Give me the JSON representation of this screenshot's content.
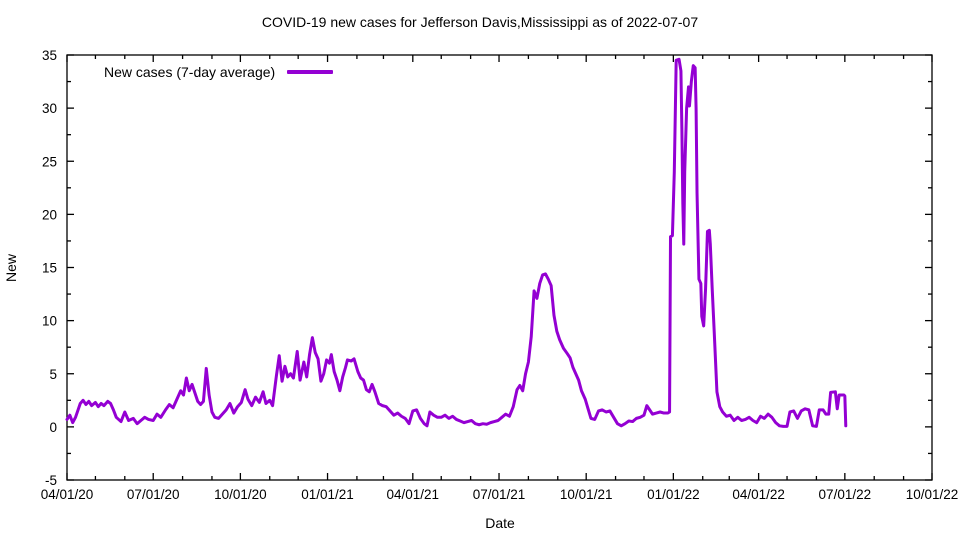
{
  "chart_data": {
    "type": "line",
    "title": "COVID-19 new cases for Jefferson Davis,Mississippi as of 2022-07-07",
    "xlabel": "Date",
    "ylabel": "New",
    "ylim": [
      -5,
      35
    ],
    "xlim_dates": [
      "04/01/20",
      "10/01/22"
    ],
    "grid": false,
    "x_tick_labels": [
      "04/01/20",
      "07/01/20",
      "10/01/20",
      "01/01/21",
      "04/01/21",
      "07/01/21",
      "10/01/21",
      "01/01/22",
      "04/01/22",
      "07/01/22",
      "10/01/22"
    ],
    "y_tick_labels": [
      "-5",
      "0",
      "5",
      "10",
      "15",
      "20",
      "25",
      "30",
      "35"
    ],
    "legend": {
      "position": "top-left-inside",
      "entries": [
        {
          "label": "New cases (7-day average)",
          "color": "#9400D3"
        }
      ]
    },
    "series": [
      {
        "name": "New cases (7-day average)",
        "color": "#9400D3",
        "points": [
          [
            "04/01/20",
            0.7
          ],
          [
            "04/04/20",
            1.1
          ],
          [
            "04/07/20",
            0.4
          ],
          [
            "04/10/20",
            0.9
          ],
          [
            "04/15/20",
            2.2
          ],
          [
            "04/18/20",
            2.5
          ],
          [
            "04/21/20",
            2.1
          ],
          [
            "04/24/20",
            2.4
          ],
          [
            "04/27/20",
            2.0
          ],
          [
            "05/01/20",
            2.3
          ],
          [
            "05/04/20",
            1.9
          ],
          [
            "05/07/20",
            2.2
          ],
          [
            "05/10/20",
            2.0
          ],
          [
            "05/14/20",
            2.4
          ],
          [
            "05/17/20",
            2.2
          ],
          [
            "05/20/20",
            1.6
          ],
          [
            "05/23/20",
            0.9
          ],
          [
            "05/28/20",
            0.5
          ],
          [
            "06/01/20",
            1.4
          ],
          [
            "06/05/20",
            0.6
          ],
          [
            "06/10/20",
            0.8
          ],
          [
            "06/14/20",
            0.3
          ],
          [
            "06/18/20",
            0.6
          ],
          [
            "06/22/20",
            0.9
          ],
          [
            "06/26/20",
            0.7
          ],
          [
            "07/01/20",
            0.6
          ],
          [
            "07/05/20",
            1.2
          ],
          [
            "07/09/20",
            0.9
          ],
          [
            "07/14/20",
            1.6
          ],
          [
            "07/18/20",
            2.1
          ],
          [
            "07/22/20",
            1.8
          ],
          [
            "07/26/20",
            2.6
          ],
          [
            "07/30/20",
            3.4
          ],
          [
            "08/02/20",
            3.0
          ],
          [
            "08/05/20",
            4.6
          ],
          [
            "08/08/20",
            3.4
          ],
          [
            "08/11/20",
            4.0
          ],
          [
            "08/14/20",
            3.2
          ],
          [
            "08/17/20",
            2.4
          ],
          [
            "08/20/20",
            2.1
          ],
          [
            "08/23/20",
            2.4
          ],
          [
            "08/26/20",
            5.5
          ],
          [
            "08/29/20",
            3.0
          ],
          [
            "09/01/20",
            1.4
          ],
          [
            "09/04/20",
            0.9
          ],
          [
            "09/08/20",
            0.8
          ],
          [
            "09/12/20",
            1.2
          ],
          [
            "09/16/20",
            1.6
          ],
          [
            "09/20/20",
            2.2
          ],
          [
            "09/24/20",
            1.3
          ],
          [
            "09/28/20",
            1.9
          ],
          [
            "10/02/20",
            2.3
          ],
          [
            "10/06/20",
            3.5
          ],
          [
            "10/09/20",
            2.6
          ],
          [
            "10/13/20",
            2.0
          ],
          [
            "10/17/20",
            2.8
          ],
          [
            "10/21/20",
            2.3
          ],
          [
            "10/25/20",
            3.3
          ],
          [
            "10/28/20",
            2.2
          ],
          [
            "11/01/20",
            2.5
          ],
          [
            "11/04/20",
            2.0
          ],
          [
            "11/08/20",
            4.8
          ],
          [
            "11/11/20",
            6.7
          ],
          [
            "11/14/20",
            4.3
          ],
          [
            "11/17/20",
            5.7
          ],
          [
            "11/20/20",
            4.7
          ],
          [
            "11/23/20",
            5.0
          ],
          [
            "11/26/20",
            4.6
          ],
          [
            "11/30/20",
            7.1
          ],
          [
            "12/03/20",
            4.4
          ],
          [
            "12/07/20",
            6.1
          ],
          [
            "12/10/20",
            4.7
          ],
          [
            "12/13/20",
            6.8
          ],
          [
            "12/16/20",
            8.4
          ],
          [
            "12/19/20",
            7.0
          ],
          [
            "12/22/20",
            6.4
          ],
          [
            "12/25/20",
            4.3
          ],
          [
            "12/28/20",
            5.0
          ],
          [
            "12/31/20",
            6.3
          ],
          [
            "01/03/21",
            6.0
          ],
          [
            "01/05/21",
            6.8
          ],
          [
            "01/08/21",
            5.2
          ],
          [
            "01/11/21",
            4.4
          ],
          [
            "01/14/21",
            3.4
          ],
          [
            "01/17/21",
            4.7
          ],
          [
            "01/20/21",
            5.6
          ],
          [
            "01/22/21",
            6.3
          ],
          [
            "01/26/21",
            6.2
          ],
          [
            "01/29/21",
            6.4
          ],
          [
            "02/02/21",
            5.2
          ],
          [
            "02/05/21",
            4.6
          ],
          [
            "02/08/21",
            4.4
          ],
          [
            "02/11/21",
            3.5
          ],
          [
            "02/14/21",
            3.3
          ],
          [
            "02/17/21",
            4.0
          ],
          [
            "02/20/21",
            3.3
          ],
          [
            "02/24/21",
            2.2
          ],
          [
            "02/28/21",
            2.0
          ],
          [
            "03/04/21",
            1.9
          ],
          [
            "03/08/21",
            1.5
          ],
          [
            "03/12/21",
            1.1
          ],
          [
            "03/16/21",
            1.3
          ],
          [
            "03/20/21",
            1.0
          ],
          [
            "03/24/21",
            0.8
          ],
          [
            "03/28/21",
            0.3
          ],
          [
            "04/01/21",
            1.5
          ],
          [
            "04/05/21",
            1.6
          ],
          [
            "04/09/21",
            0.8
          ],
          [
            "04/13/21",
            0.3
          ],
          [
            "04/16/21",
            0.1
          ],
          [
            "04/19/21",
            1.4
          ],
          [
            "04/23/21",
            1.1
          ],
          [
            "04/27/21",
            0.9
          ],
          [
            "05/01/21",
            0.9
          ],
          [
            "05/05/21",
            1.1
          ],
          [
            "05/09/21",
            0.8
          ],
          [
            "05/13/21",
            1.0
          ],
          [
            "05/17/21",
            0.7
          ],
          [
            "05/21/21",
            0.55
          ],
          [
            "05/25/21",
            0.4
          ],
          [
            "05/29/21",
            0.5
          ],
          [
            "06/02/21",
            0.6
          ],
          [
            "06/06/21",
            0.3
          ],
          [
            "06/10/21",
            0.2
          ],
          [
            "06/14/21",
            0.3
          ],
          [
            "06/18/21",
            0.25
          ],
          [
            "06/22/21",
            0.4
          ],
          [
            "06/26/21",
            0.5
          ],
          [
            "06/30/21",
            0.6
          ],
          [
            "07/04/21",
            0.9
          ],
          [
            "07/08/21",
            1.2
          ],
          [
            "07/12/21",
            1.0
          ],
          [
            "07/16/21",
            1.9
          ],
          [
            "07/20/21",
            3.5
          ],
          [
            "07/23/21",
            3.9
          ],
          [
            "07/26/21",
            3.4
          ],
          [
            "07/29/21",
            5.0
          ],
          [
            "08/01/21",
            6.1
          ],
          [
            "08/04/21",
            8.5
          ],
          [
            "08/07/21",
            12.8
          ],
          [
            "08/10/21",
            12.1
          ],
          [
            "08/13/21",
            13.5
          ],
          [
            "08/16/21",
            14.3
          ],
          [
            "08/19/21",
            14.4
          ],
          [
            "08/22/21",
            13.9
          ],
          [
            "08/25/21",
            13.3
          ],
          [
            "08/28/21",
            10.5
          ],
          [
            "08/31/21",
            9.0
          ],
          [
            "09/03/21",
            8.2
          ],
          [
            "09/07/21",
            7.4
          ],
          [
            "09/11/21",
            6.9
          ],
          [
            "09/14/21",
            6.5
          ],
          [
            "09/17/21",
            5.6
          ],
          [
            "09/20/21",
            5.0
          ],
          [
            "09/23/21",
            4.4
          ],
          [
            "09/26/21",
            3.4
          ],
          [
            "09/30/21",
            2.6
          ],
          [
            "10/03/21",
            1.7
          ],
          [
            "10/06/21",
            0.8
          ],
          [
            "10/10/21",
            0.7
          ],
          [
            "10/14/21",
            1.5
          ],
          [
            "10/18/21",
            1.6
          ],
          [
            "10/22/21",
            1.4
          ],
          [
            "10/26/21",
            1.5
          ],
          [
            "10/30/21",
            0.9
          ],
          [
            "11/03/21",
            0.3
          ],
          [
            "11/07/21",
            0.1
          ],
          [
            "11/11/21",
            0.3
          ],
          [
            "11/15/21",
            0.55
          ],
          [
            "11/19/21",
            0.5
          ],
          [
            "11/23/21",
            0.8
          ],
          [
            "11/27/21",
            0.9
          ],
          [
            "12/01/21",
            1.1
          ],
          [
            "12/04/21",
            2.0
          ],
          [
            "12/07/21",
            1.6
          ],
          [
            "12/10/21",
            1.2
          ],
          [
            "12/14/21",
            1.3
          ],
          [
            "12/18/21",
            1.4
          ],
          [
            "12/22/21",
            1.3
          ],
          [
            "12/26/21",
            1.3
          ],
          [
            "12/28/21",
            1.4
          ],
          [
            "12/29/21",
            17.9
          ],
          [
            "12/31/21",
            18.0
          ],
          [
            "01/02/22",
            24.0
          ],
          [
            "01/04/22",
            34.5
          ],
          [
            "01/07/22",
            34.6
          ],
          [
            "01/09/22",
            33.5
          ],
          [
            "01/10/22",
            28.0
          ],
          [
            "01/11/22",
            21.0
          ],
          [
            "01/12/22",
            17.2
          ],
          [
            "01/13/22",
            24.0
          ],
          [
            "01/15/22",
            30.0
          ],
          [
            "01/17/22",
            32.0
          ],
          [
            "01/18/22",
            30.2
          ],
          [
            "01/20/22",
            32.5
          ],
          [
            "01/22/22",
            34.0
          ],
          [
            "01/24/22",
            33.8
          ],
          [
            "01/25/22",
            30.0
          ],
          [
            "01/26/22",
            22.0
          ],
          [
            "01/28/22",
            13.9
          ],
          [
            "01/30/22",
            13.5
          ],
          [
            "01/31/22",
            10.4
          ],
          [
            "02/02/22",
            9.5
          ],
          [
            "02/04/22",
            13.0
          ],
          [
            "02/06/22",
            18.4
          ],
          [
            "02/08/22",
            18.5
          ],
          [
            "02/09/22",
            17.2
          ],
          [
            "02/11/22",
            13.0
          ],
          [
            "02/13/22",
            9.2
          ],
          [
            "02/16/22",
            3.3
          ],
          [
            "02/19/22",
            1.9
          ],
          [
            "02/22/22",
            1.4
          ],
          [
            "02/26/22",
            1.0
          ],
          [
            "03/02/22",
            1.1
          ],
          [
            "03/06/22",
            0.6
          ],
          [
            "03/10/22",
            0.9
          ],
          [
            "03/14/22",
            0.6
          ],
          [
            "03/18/22",
            0.7
          ],
          [
            "03/22/22",
            0.9
          ],
          [
            "03/26/22",
            0.6
          ],
          [
            "03/30/22",
            0.4
          ],
          [
            "04/03/22",
            1.0
          ],
          [
            "04/07/22",
            0.8
          ],
          [
            "04/11/22",
            1.2
          ],
          [
            "04/15/22",
            0.9
          ],
          [
            "04/19/22",
            0.4
          ],
          [
            "04/23/22",
            0.1
          ],
          [
            "04/27/22",
            0.05
          ],
          [
            "05/01/22",
            0.05
          ],
          [
            "05/04/22",
            1.4
          ],
          [
            "05/08/22",
            1.5
          ],
          [
            "05/12/22",
            0.8
          ],
          [
            "05/16/22",
            1.5
          ],
          [
            "05/20/22",
            1.7
          ],
          [
            "05/24/22",
            1.6
          ],
          [
            "05/28/22",
            0.1
          ],
          [
            "06/01/22",
            0.05
          ],
          [
            "06/04/22",
            1.6
          ],
          [
            "06/08/22",
            1.6
          ],
          [
            "06/11/22",
            1.2
          ],
          [
            "06/14/22",
            1.2
          ],
          [
            "06/16/22",
            3.25
          ],
          [
            "06/21/22",
            3.3
          ],
          [
            "06/23/22",
            1.7
          ],
          [
            "06/25/22",
            3.0
          ],
          [
            "06/30/22",
            3.0
          ],
          [
            "07/01/22",
            2.9
          ],
          [
            "07/02/22",
            0.1
          ]
        ]
      }
    ]
  },
  "colors": {
    "line": "#9400D3",
    "axis": "#000000",
    "text": "#000000",
    "background": "#ffffff"
  }
}
